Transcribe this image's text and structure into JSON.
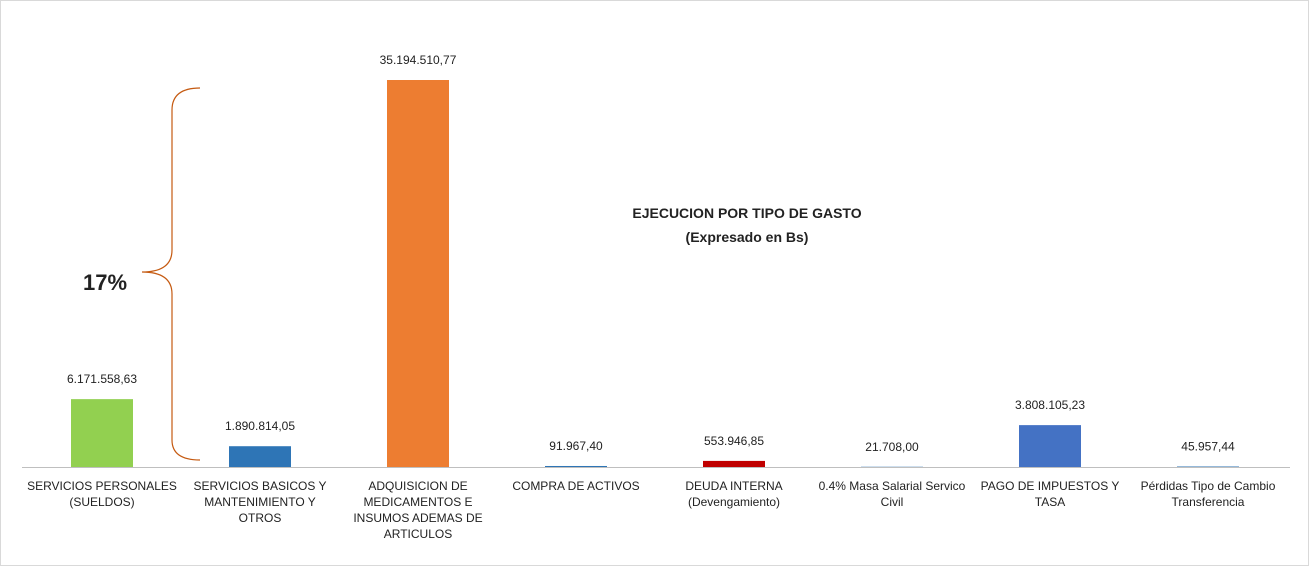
{
  "chart_data": {
    "type": "bar",
    "title": "EJECUCION POR TIPO DE GASTO",
    "subtitle": "(Expresado en Bs)",
    "annotation": "17%",
    "categories": [
      "SERVICIOS PERSONALES (SUELDOS)",
      "SERVICIOS BASICOS Y MANTENIMIENTO Y OTROS",
      "ADQUISICION DE MEDICAMENTOS E INSUMOS ADEMAS DE ARTICULOS",
      "COMPRA DE ACTIVOS",
      "DEUDA INTERNA (Devengamiento)",
      "0.4% Masa Salarial Servico Civil",
      "PAGO DE IMPUESTOS Y TASA",
      "Pérdidas Tipo de Cambio Transferencia"
    ],
    "values": [
      6171558.63,
      1890814.05,
      35194510.77,
      91967.4,
      553946.85,
      21708.0,
      3808105.23,
      45957.44
    ],
    "value_labels": [
      "6.171.558,63",
      "1.890.814,05",
      "35.194.510,77",
      "91.967,40",
      "553.946,85",
      "21.708,00",
      "3.808.105,23",
      "45.957,44"
    ],
    "colors": [
      "#92d050",
      "#2e75b6",
      "#ed7d31",
      "#2e75b6",
      "#c00000",
      "#2e75b6",
      "#4472c4",
      "#2e75b6"
    ]
  }
}
